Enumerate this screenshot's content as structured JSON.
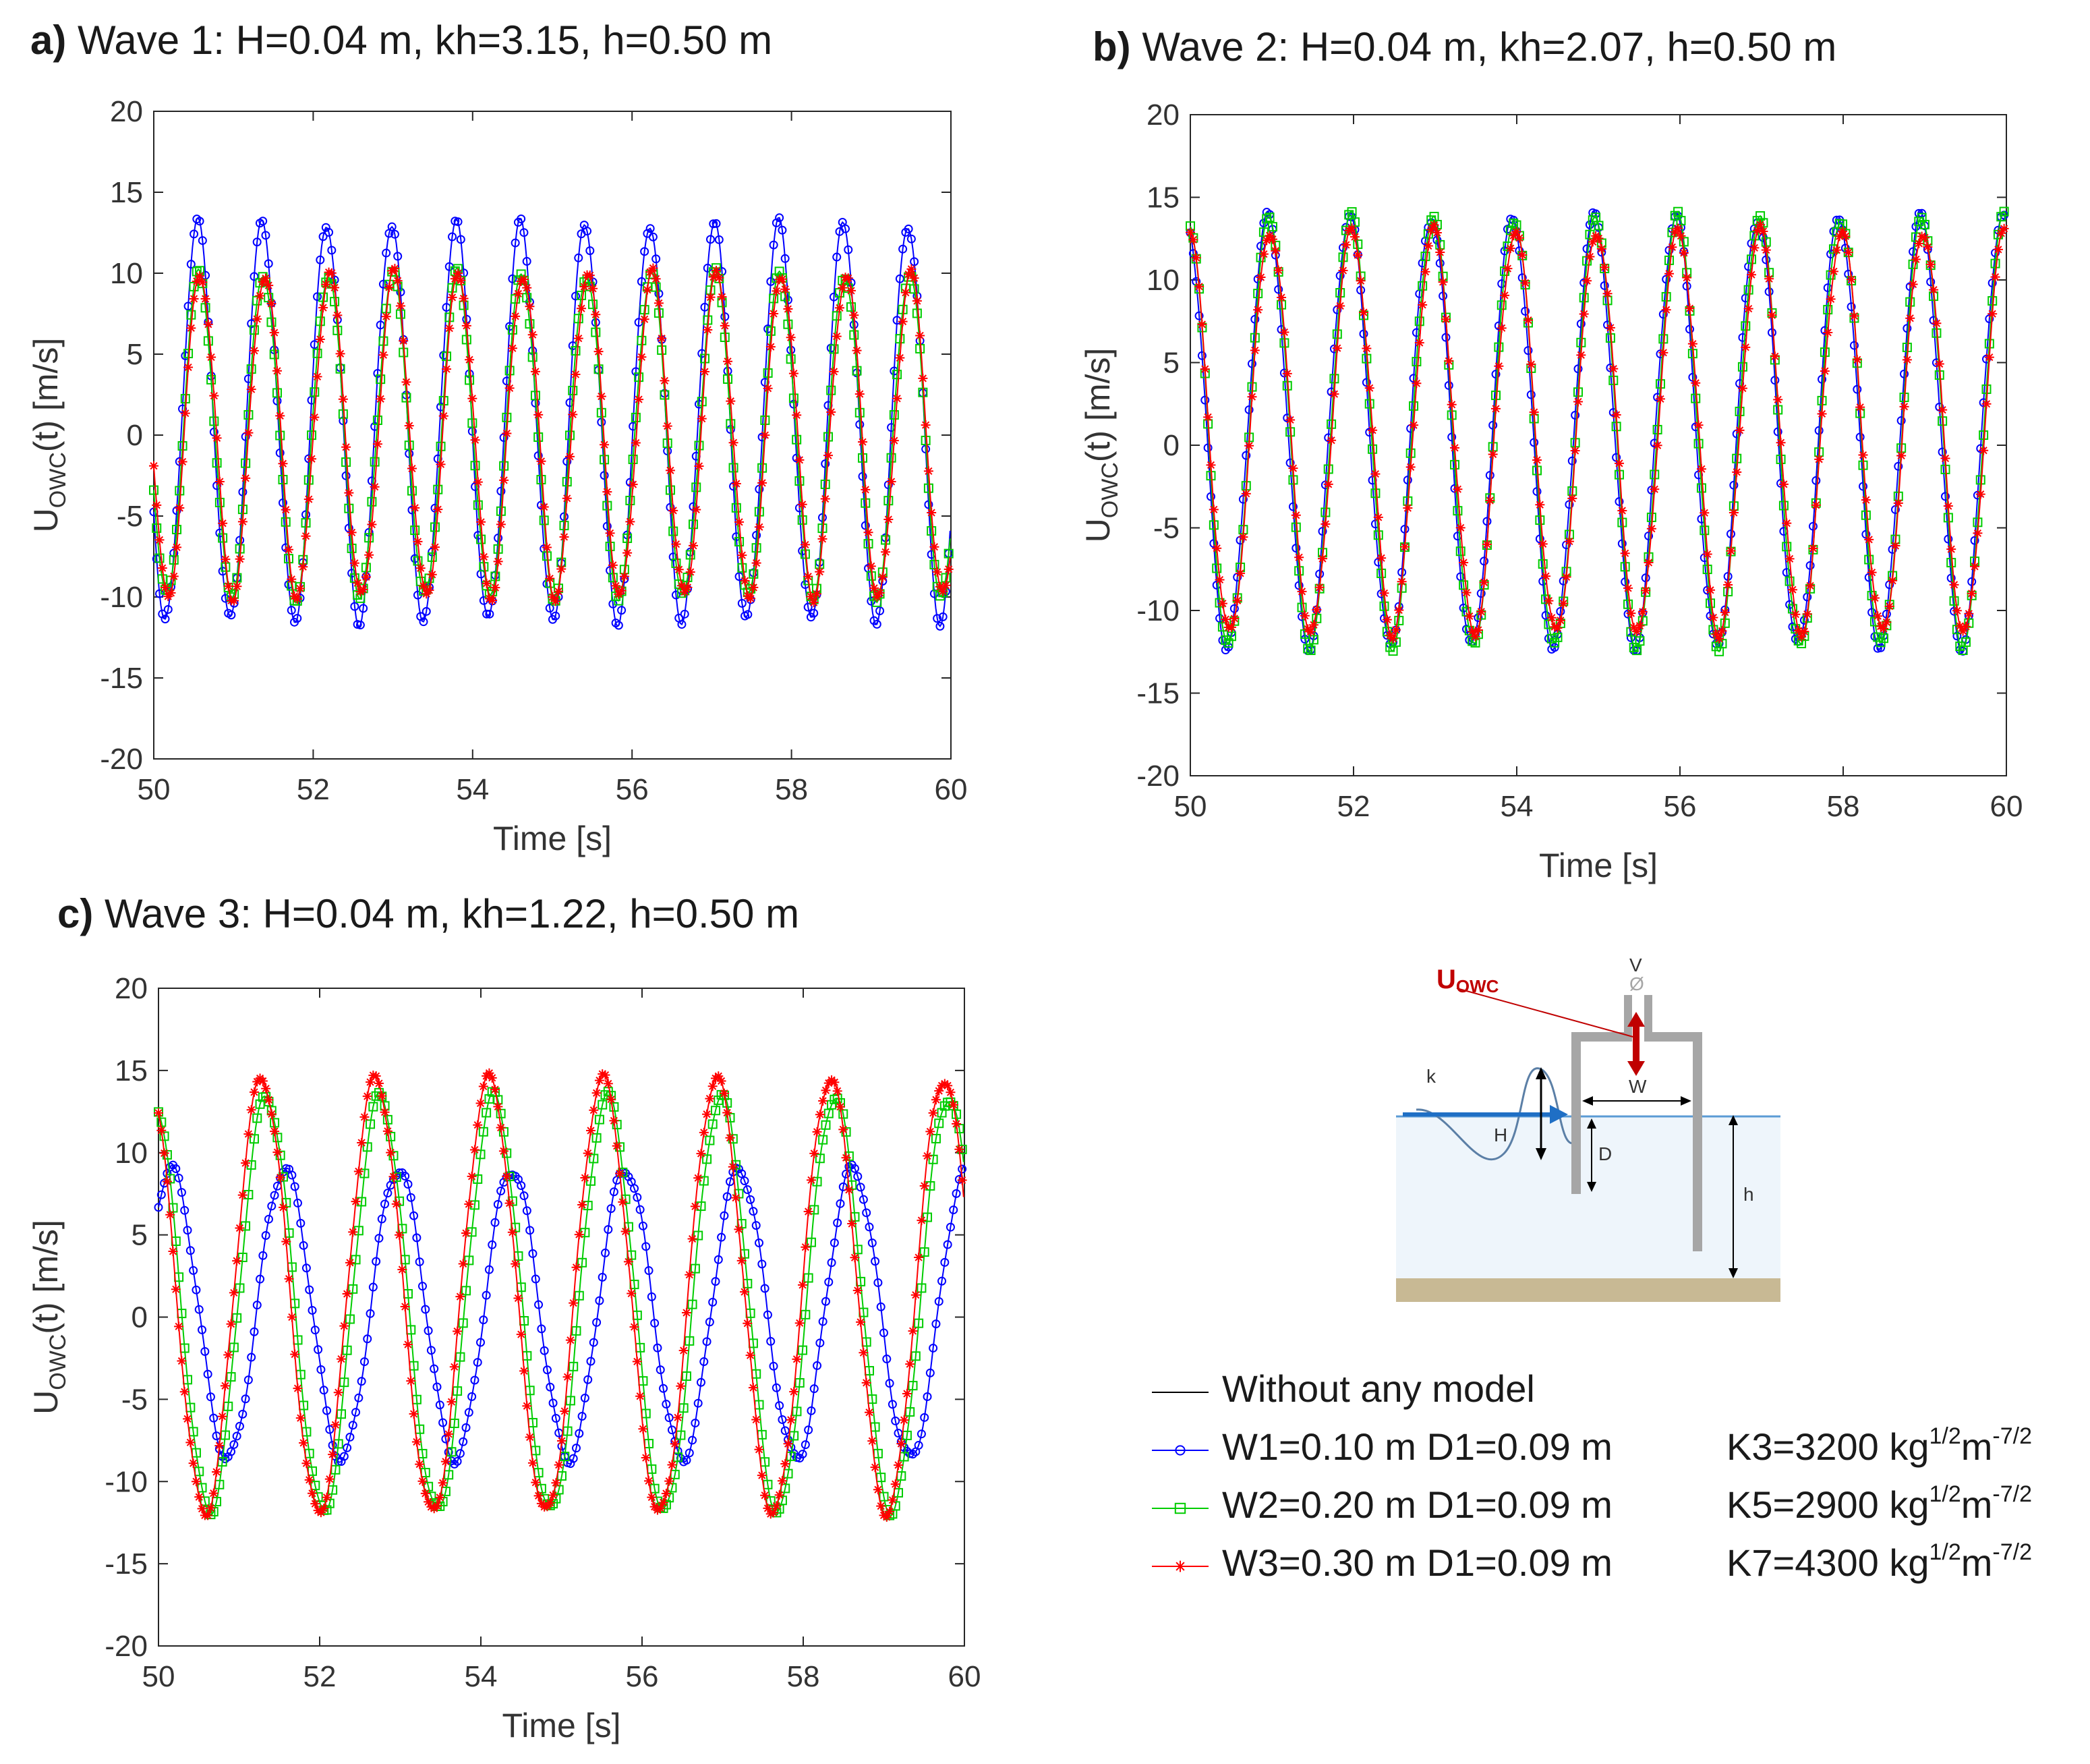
{
  "figure": {
    "panels": [
      {
        "letter": "a)",
        "title": "Wave 1: H=0.04 m, kh=3.15, h=0.50 m"
      },
      {
        "letter": "b)",
        "title": "Wave 2: H=0.04 m, kh=2.07, h=0.50 m"
      },
      {
        "letter": "c)",
        "title": "Wave 3: H=0.04 m, kh=1.22, h=0.50 m"
      }
    ]
  },
  "legend": {
    "entries": [
      {
        "label": "Without any model",
        "k": "",
        "color": "#000000",
        "marker": "none"
      },
      {
        "label": "W1=0.10 m D1=0.09 m",
        "k": "K3=3200 kg",
        "color": "#0000ff",
        "marker": "circle"
      },
      {
        "label": "W2=0.20 m D1=0.09 m",
        "k": "K5=2900 kg",
        "color": "#00cc00",
        "marker": "square"
      },
      {
        "label": "W3=0.30 m D1=0.09 m",
        "k": "K7=4300 kg",
        "color": "#ff0000",
        "marker": "star"
      }
    ],
    "unit_sup1": "1/2",
    "unit_m": "m",
    "unit_sup2": "-7/2"
  },
  "schematic": {
    "u_label": "U",
    "u_sub": "OWC",
    "v_label": "V",
    "phi_label": "Ø",
    "k_label": "k",
    "H_label": "H",
    "W_label": "W",
    "D_label": "D",
    "h_label": "h"
  },
  "chart_data": [
    {
      "type": "line",
      "title": "Wave 1: H=0.04 m, kh=3.15, h=0.50 m",
      "xlabel": "Time [s]",
      "ylabel": "U",
      "ylabel_sub": "OWC",
      "ylabel_rest": "(t) [m/s]",
      "xlim": [
        50,
        60
      ],
      "ylim": [
        -20,
        20
      ],
      "xticks": [
        50,
        52,
        54,
        56,
        58,
        60
      ],
      "yticks": [
        -20,
        -15,
        -10,
        -5,
        0,
        5,
        10,
        15,
        20
      ],
      "period": 0.81,
      "series": [
        {
          "name": "W1=0.10 m D1=0.09 m",
          "color": "#0000ff",
          "marker": "circle",
          "amplitude": 12.3,
          "offset": 0.8,
          "phase": 0.57
        },
        {
          "name": "W2=0.20 m D1=0.09 m",
          "color": "#00cc00",
          "marker": "square",
          "amplitude": 10.0,
          "offset": 0.0,
          "phase": 0.55
        },
        {
          "name": "W3=0.30 m D1=0.09 m",
          "color": "#ff0000",
          "marker": "star",
          "amplitude": 10.0,
          "offset": 0.0,
          "phase": 0.53
        }
      ]
    },
    {
      "type": "line",
      "title": "Wave 2: H=0.04 m, kh=2.07, h=0.50 m",
      "xlabel": "Time [s]",
      "ylabel": "U",
      "ylabel_sub": "OWC",
      "ylabel_rest": "(t) [m/s]",
      "xlim": [
        50,
        60
      ],
      "ylim": [
        -20,
        20
      ],
      "xticks": [
        50,
        52,
        54,
        56,
        58,
        60
      ],
      "yticks": [
        -20,
        -15,
        -10,
        -5,
        0,
        5,
        10,
        15,
        20
      ],
      "period": 1.0,
      "series": [
        {
          "name": "W1=0.10 m D1=0.09 m",
          "color": "#0000ff",
          "marker": "circle",
          "amplitude": 13.0,
          "offset": 0.8,
          "phase": 0.3
        },
        {
          "name": "W2=0.20 m D1=0.09 m",
          "color": "#00cc00",
          "marker": "square",
          "amplitude": 13.0,
          "offset": 0.8,
          "phase": 0.28
        },
        {
          "name": "W3=0.30 m D1=0.09 m",
          "color": "#ff0000",
          "marker": "star",
          "amplitude": 12.2,
          "offset": 0.8,
          "phase": 0.27
        }
      ]
    },
    {
      "type": "line",
      "title": "Wave 3: H=0.04 m, kh=1.22, h=0.50 m",
      "xlabel": "Time [s]",
      "ylabel": "U",
      "ylabel_sub": "OWC",
      "ylabel_rest": "(t) [m/s]",
      "xlim": [
        50,
        60
      ],
      "ylim": [
        -20,
        20
      ],
      "xticks": [
        50,
        52,
        54,
        56,
        58,
        60
      ],
      "yticks": [
        -20,
        -15,
        -10,
        -5,
        0,
        5,
        10,
        15,
        20
      ],
      "period": 1.41,
      "series": [
        {
          "name": "W1=0.10 m D1=0.09 m",
          "color": "#0000ff",
          "marker": "circle",
          "amplitude": 8.8,
          "offset": 0.2,
          "phase": 0.14
        },
        {
          "name": "W2=0.20 m D1=0.09 m",
          "color": "#00cc00",
          "marker": "square",
          "amplitude": 12.6,
          "offset": 0.8,
          "phase": 0.3
        },
        {
          "name": "W3=0.30 m D1=0.09 m",
          "color": "#ff0000",
          "marker": "star",
          "amplitude": 13.2,
          "offset": 1.3,
          "phase": 0.34
        }
      ]
    }
  ]
}
